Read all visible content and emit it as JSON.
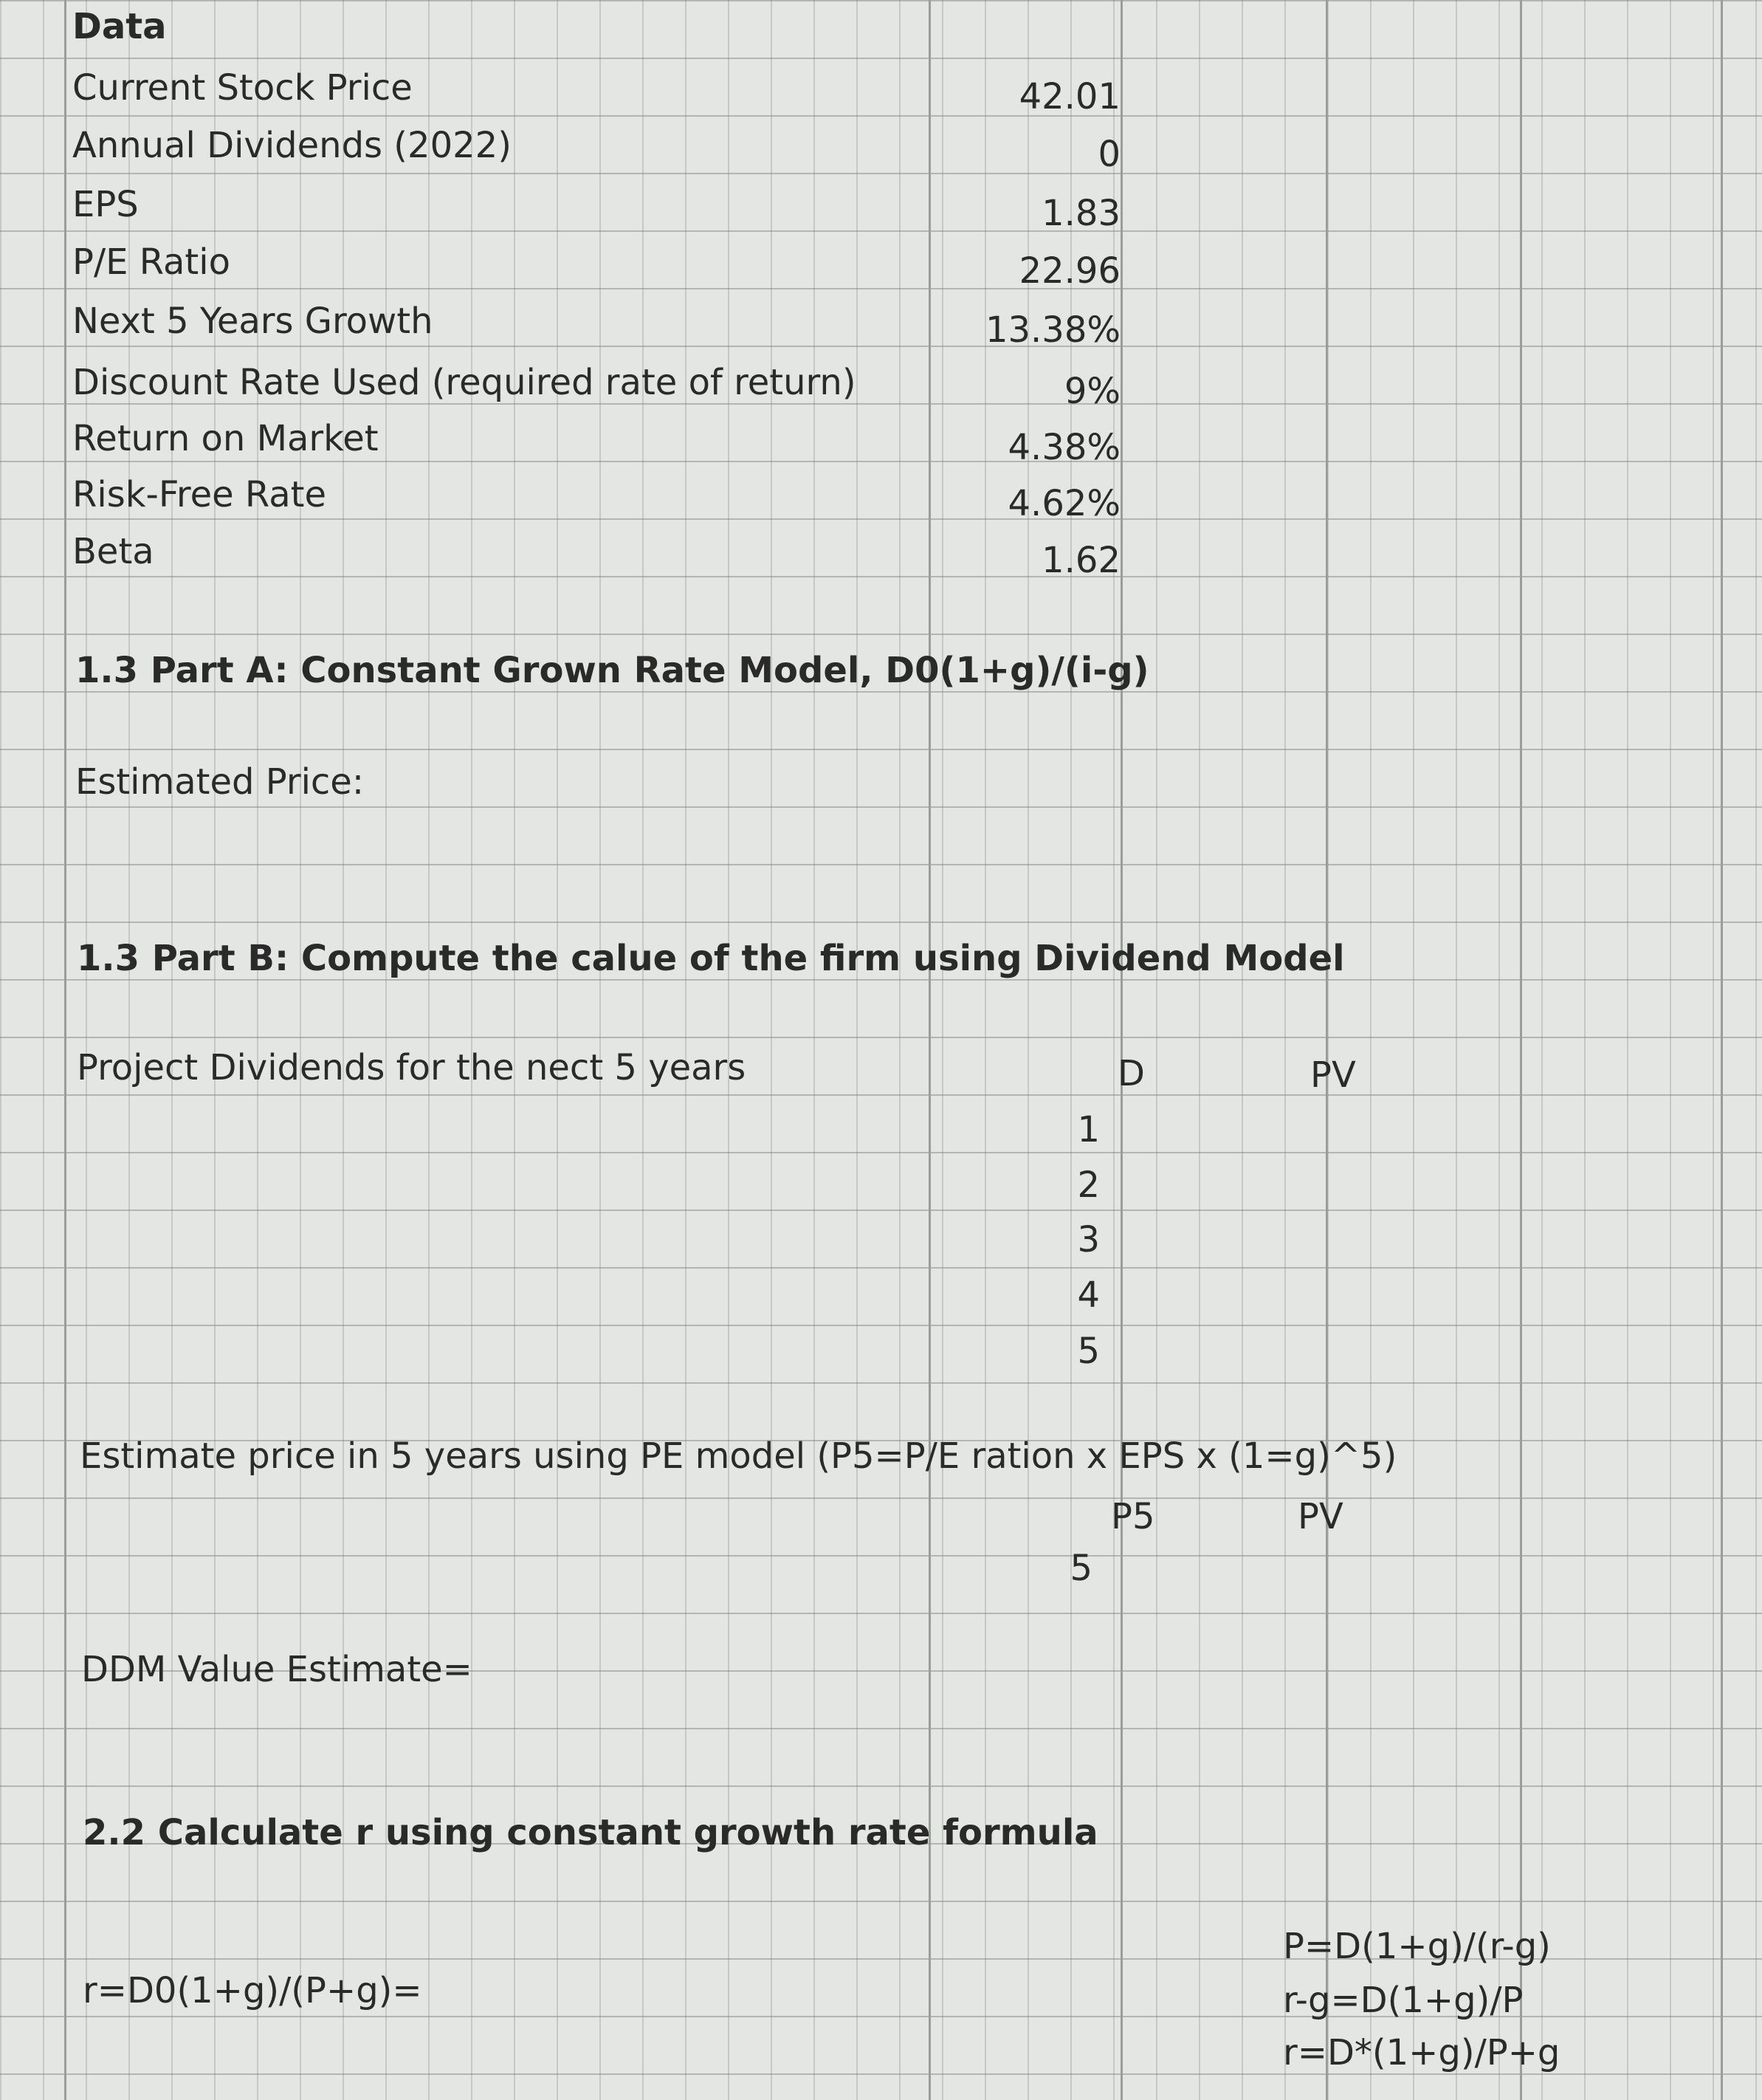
{
  "data_section": {
    "title": "Data",
    "rows": [
      {
        "label": "Current Stock Price",
        "value": "42.01"
      },
      {
        "label": "Annual Dividends (2022)",
        "value": "0"
      },
      {
        "label": "EPS",
        "value": "1.83"
      },
      {
        "label": "P/E Ratio",
        "value": "22.96"
      },
      {
        "label": "Next 5 Years Growth",
        "value": "13.38%"
      },
      {
        "label": "Discount Rate Used (required rate of return)",
        "value": "9%"
      },
      {
        "label": "Return on Market",
        "value": "4.38%"
      },
      {
        "label": "Risk-Free Rate",
        "value": "4.62%"
      },
      {
        "label": "Beta",
        "value": "1.62"
      }
    ]
  },
  "part_a": {
    "title": "1.3 Part A: Constant Grown Rate Model, D0(1+g)/(i-g)",
    "estimated_price": "Estimated Price:"
  },
  "part_b": {
    "title": "1.3 Part B: Compute the calue of the firm using Dividend Model",
    "project_label": "Project Dividends for the nect 5 years",
    "col_d": "D",
    "col_pv": "PV",
    "years": [
      "1",
      "2",
      "3",
      "4",
      "5"
    ],
    "pe_title": "Estimate price in 5 years using PE model (P5=P/E ration x EPS x (1=g)^5)",
    "col_p5": "P5",
    "col_pv2": "PV",
    "pe_year": "5",
    "ddm": "DDM Value Estimate="
  },
  "part_22": {
    "title": "2.2 Calculate r using constant growth rate formula",
    "formula_label": "r=D0(1+g)/(P+g)=",
    "notes": [
      "P=D(1+g)/(r-g)",
      "r-g=D(1+g)/P",
      "r=D*(1+g)/P+g"
    ]
  }
}
